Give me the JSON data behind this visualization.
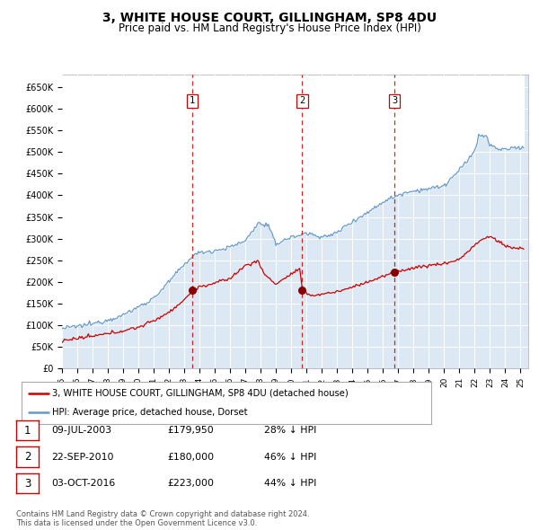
{
  "title": "3, WHITE HOUSE COURT, GILLINGHAM, SP8 4DU",
  "subtitle": "Price paid vs. HM Land Registry's House Price Index (HPI)",
  "title_fontsize": 10,
  "subtitle_fontsize": 8.5,
  "plot_bg_color": "#dce9f5",
  "grid_color": "#ffffff",
  "legend_line1": "3, WHITE HOUSE COURT, GILLINGHAM, SP8 4DU (detached house)",
  "legend_line2": "HPI: Average price, detached house, Dorset",
  "footer_line1": "Contains HM Land Registry data © Crown copyright and database right 2024.",
  "footer_line2": "This data is licensed under the Open Government Licence v3.0.",
  "transactions": [
    {
      "num": 1,
      "date": "09-JUL-2003",
      "price": 179950,
      "price_str": "£179,950",
      "pct": "28%",
      "dir": "↓",
      "year_x": 2003.52
    },
    {
      "num": 2,
      "date": "22-SEP-2010",
      "price": 180000,
      "price_str": "£180,000",
      "pct": "46%",
      "dir": "↓",
      "year_x": 2010.72
    },
    {
      "num": 3,
      "date": "03-OCT-2016",
      "price": 223000,
      "price_str": "£223,000",
      "pct": "44%",
      "dir": "↓",
      "year_x": 2016.75
    }
  ],
  "red_line_color": "#cc0000",
  "blue_line_color": "#6699cc",
  "marker_color": "#880000",
  "vline_color": "#cc0000",
  "box_edge_color": "#cc0000",
  "ylim": [
    0,
    680000
  ],
  "xlim_start": 1995.0,
  "xlim_end": 2025.5,
  "yticks": [
    0,
    50000,
    100000,
    150000,
    200000,
    250000,
    300000,
    350000,
    400000,
    450000,
    500000,
    550000,
    600000,
    650000
  ],
  "ytick_labels": [
    "£0",
    "£50K",
    "£100K",
    "£150K",
    "£200K",
    "£250K",
    "£300K",
    "£350K",
    "£400K",
    "£450K",
    "£500K",
    "£550K",
    "£600K",
    "£650K"
  ]
}
